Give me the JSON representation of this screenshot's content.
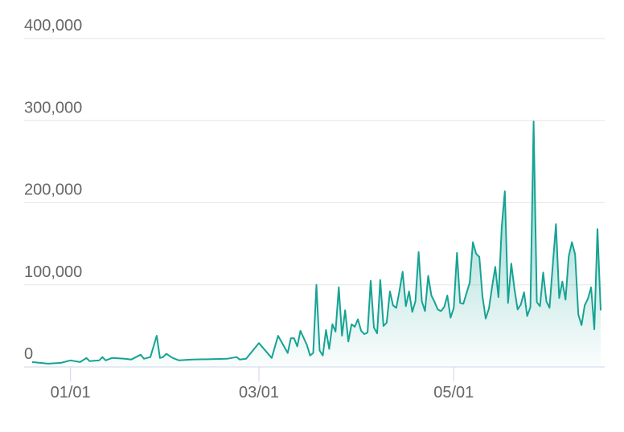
{
  "chart_data": {
    "type": "area",
    "x": [
      "12/20",
      "12/25",
      "12/29",
      "01/01",
      "01/04",
      "01/06",
      "01/07",
      "01/10",
      "01/11",
      "01/12",
      "01/14",
      "01/18",
      "01/20",
      "01/23",
      "01/24",
      "01/26",
      "01/28",
      "01/29",
      "01/30",
      "01/31",
      "02/02",
      "02/04",
      "02/08",
      "02/19",
      "02/22",
      "02/23",
      "02/25",
      "03/01",
      "03/05",
      "03/07",
      "03/10",
      "03/11",
      "03/12",
      "03/13",
      "03/14",
      "03/16",
      "03/17",
      "03/18",
      "03/19",
      "03/20",
      "03/21",
      "03/22",
      "03/23",
      "03/24",
      "03/25",
      "03/26",
      "03/27",
      "03/28",
      "03/29",
      "03/30",
      "03/31",
      "04/01",
      "04/02",
      "04/03",
      "04/04",
      "04/05",
      "04/06",
      "04/07",
      "04/08",
      "04/09",
      "04/10",
      "04/11",
      "04/12",
      "04/13",
      "04/14",
      "04/15",
      "04/16",
      "04/17",
      "04/18",
      "04/19",
      "04/20",
      "04/21",
      "04/22",
      "04/23",
      "04/24",
      "04/25",
      "04/26",
      "04/27",
      "04/28",
      "04/29",
      "04/30",
      "05/01",
      "05/02",
      "05/03",
      "05/04",
      "05/06",
      "05/07",
      "05/08",
      "05/09",
      "05/10",
      "05/11",
      "05/12",
      "05/13",
      "05/14",
      "05/15",
      "05/16",
      "05/17",
      "05/18",
      "05/19",
      "05/20",
      "05/21",
      "05/22",
      "05/23",
      "05/24",
      "05/25",
      "05/26",
      "05/27",
      "05/28",
      "05/29",
      "05/30",
      "05/31",
      "06/01",
      "06/02",
      "06/03",
      "06/04",
      "06/05",
      "06/06",
      "06/07",
      "06/08",
      "06/09",
      "06/10",
      "06/11",
      "06/12",
      "06/13",
      "06/14",
      "06/15",
      "06/16"
    ],
    "series": [
      {
        "color": "#16a394",
        "values": [
          6000,
          4000,
          5000,
          8000,
          6000,
          11000,
          7000,
          8000,
          12000,
          8000,
          11000,
          10000,
          9000,
          15000,
          10000,
          12000,
          38000,
          11000,
          12000,
          16000,
          11000,
          8000,
          9000,
          10000,
          12000,
          9000,
          10000,
          29000,
          11000,
          38000,
          17000,
          35000,
          35000,
          25000,
          44000,
          27000,
          14000,
          17000,
          100000,
          20000,
          14000,
          45000,
          22000,
          52000,
          43000,
          97000,
          38000,
          69000,
          31000,
          52000,
          49000,
          58000,
          44000,
          40000,
          42000,
          105000,
          48000,
          41000,
          106000,
          50000,
          54000,
          92000,
          75000,
          72000,
          93000,
          116000,
          74000,
          92000,
          67000,
          80000,
          140000,
          80000,
          68000,
          111000,
          87000,
          79000,
          70000,
          68000,
          73000,
          87000,
          60000,
          72000,
          139000,
          78000,
          77000,
          103000,
          152000,
          138000,
          134000,
          86000,
          59000,
          71000,
          98000,
          122000,
          85000,
          170000,
          214000,
          78000,
          126000,
          95000,
          70000,
          76000,
          91000,
          62000,
          73000,
          299000,
          79000,
          74000,
          115000,
          80000,
          72000,
          124000,
          174000,
          84000,
          104000,
          82000,
          135000,
          152000,
          137000,
          64000,
          51000,
          75000,
          83000,
          97000,
          46000,
          168000,
          69000
        ]
      }
    ],
    "xticks": [
      "01/01",
      "03/01",
      "05/01"
    ],
    "ylim": [
      0,
      400000
    ],
    "yticks": [
      0,
      {
        "value": 100000,
        "label": "100,000"
      },
      {
        "value": 200000,
        "label": "200,000"
      },
      {
        "value": 300000,
        "label": "300,000"
      },
      {
        "value": 400000,
        "label": "400,000"
      }
    ],
    "grid": true
  }
}
